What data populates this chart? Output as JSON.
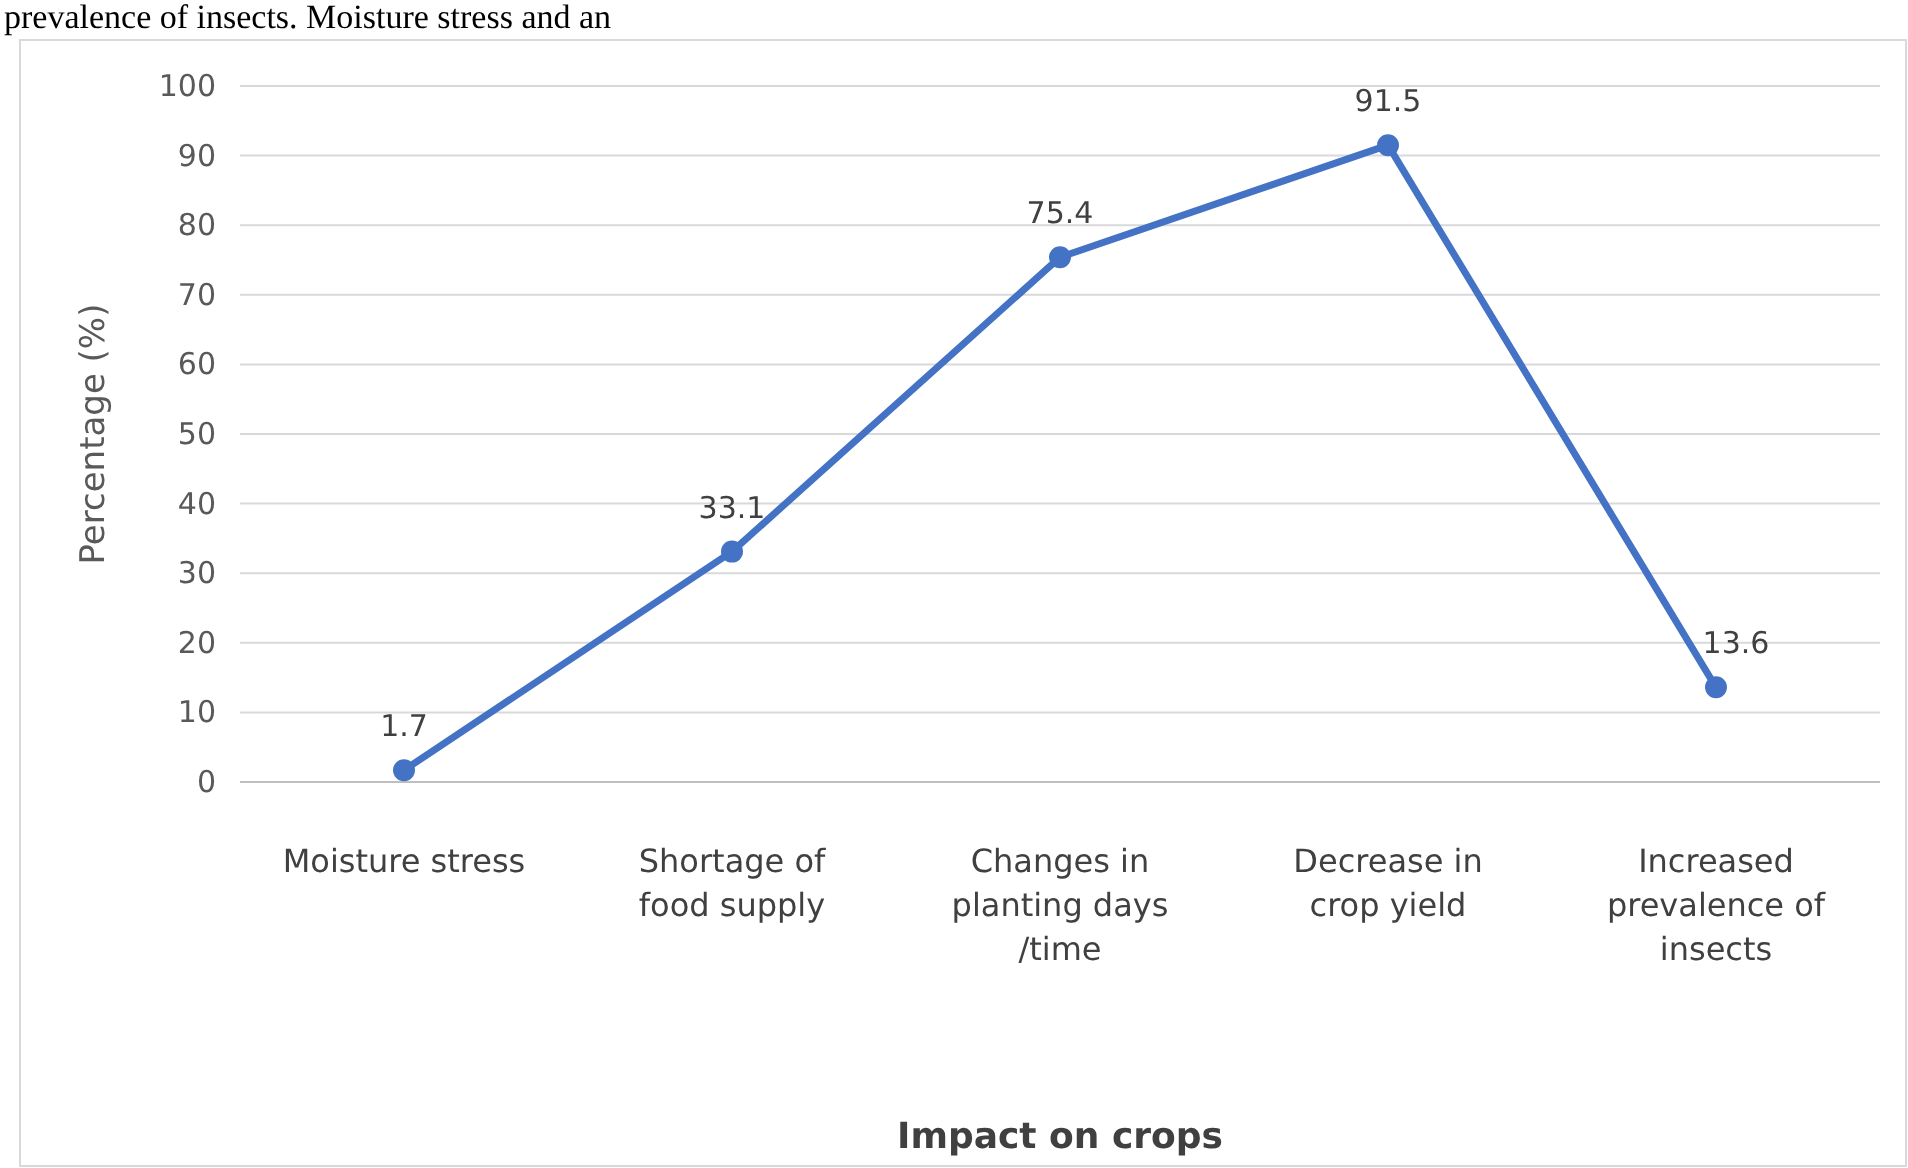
{
  "chart_data": {
    "type": "line",
    "xlabel": "Impact on crops",
    "ylabel": "Percentage (%)",
    "annotations": [
      "prevalence of insects. Moisture stress and an"
    ],
    "categories": [
      "Moisture stress",
      "Shortage of food supply",
      "Changes in planting days /time",
      "Decrease in crop yield",
      "Increased prevalence of insects"
    ],
    "series": [
      {
        "color": "#4472c4",
        "values": [
          1.7,
          33.1,
          75.4,
          91.5,
          13.6
        ]
      }
    ],
    "ylim": [
      0,
      100
    ],
    "yticks": [
      0,
      10,
      20,
      30,
      40,
      50,
      60,
      70,
      80,
      90,
      100
    ],
    "grid": "y",
    "marker": "circle",
    "line_style": "solid",
    "data_labels": true
  }
}
